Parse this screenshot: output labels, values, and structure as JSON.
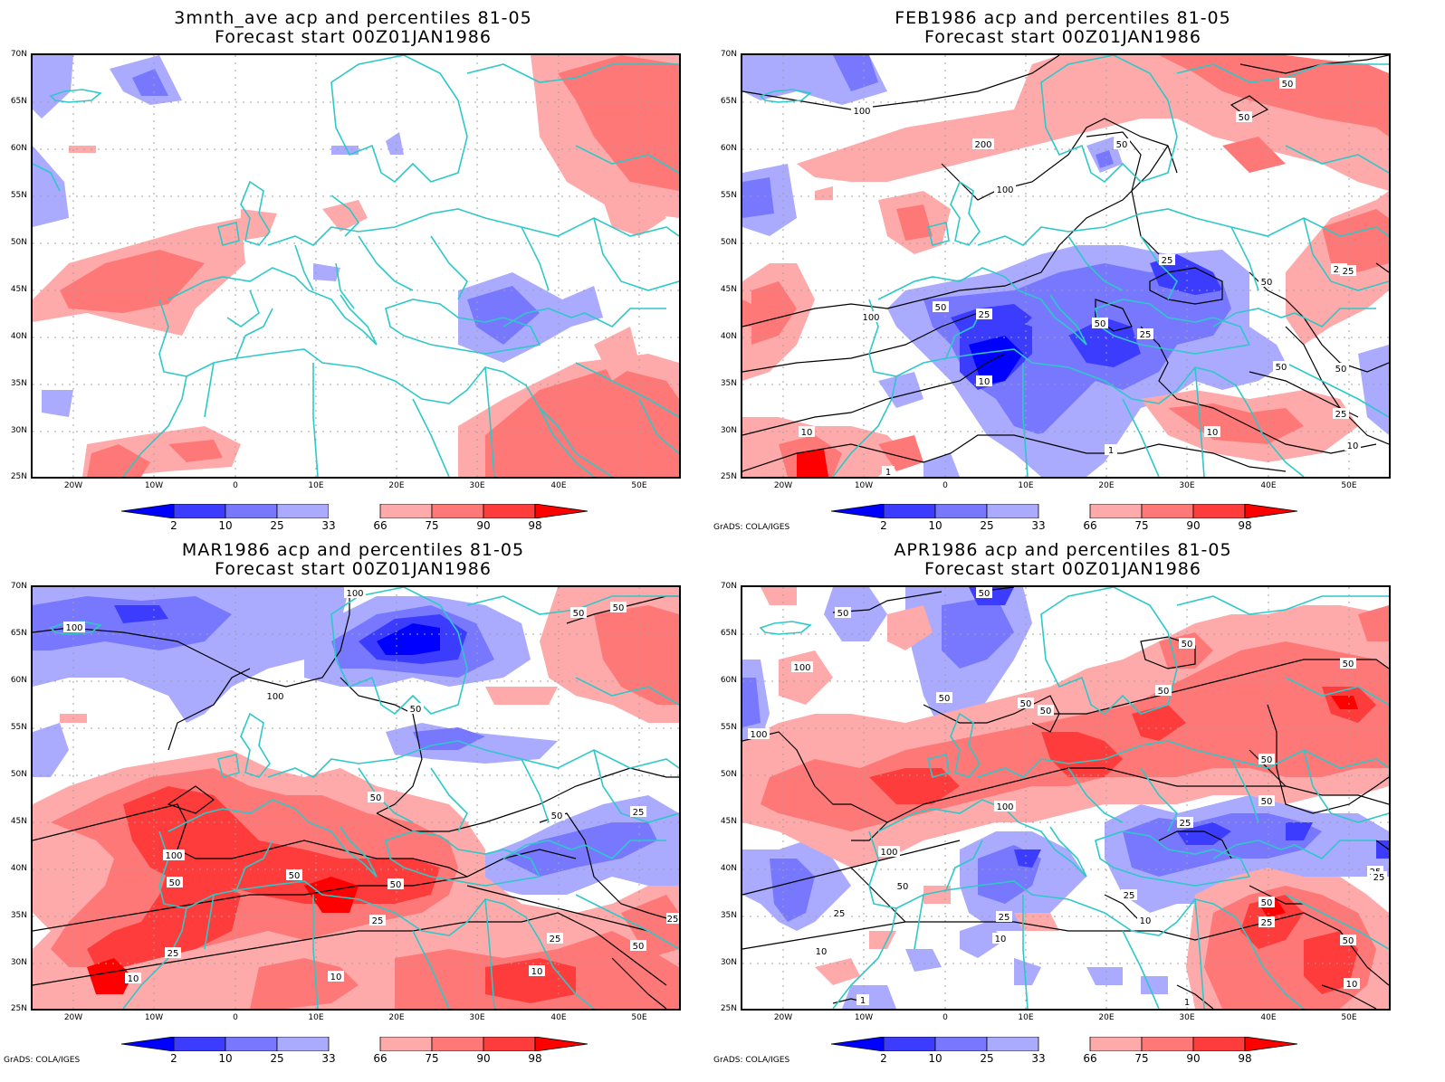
{
  "panels": [
    {
      "id": "ave",
      "title_line1": "3mnth_ave acp and percentiles 81-05",
      "title_line2": "Forecast start 00Z01JAN1986",
      "credit": "",
      "contour_labels": []
    },
    {
      "id": "feb",
      "title_line1": "FEB1986 acp and percentiles 81-05",
      "title_line2": "Forecast start 00Z01JAN1986",
      "credit": "GrADS: COLA/IGES",
      "contour_labels": [
        "100",
        "50",
        "50",
        "200",
        "100",
        "25",
        "50",
        "25",
        "50",
        "100",
        "50",
        "25",
        "10",
        "25",
        "50",
        "50",
        "50",
        "25",
        "10",
        "10",
        "10",
        "1",
        "1",
        "25"
      ]
    },
    {
      "id": "mar",
      "title_line1": "MAR1986 acp and percentiles 81-05",
      "title_line2": "Forecast start 00Z01JAN1986",
      "credit": "GrADS: COLA/IGES",
      "contour_labels": [
        "100",
        "100",
        "50",
        "50",
        "100",
        "50",
        "50",
        "50",
        "25",
        "100",
        "50",
        "50",
        "50",
        "25",
        "25",
        "25",
        "10",
        "10",
        "50",
        "10",
        "25"
      ]
    },
    {
      "id": "apr",
      "title_line1": "APR1986 acp and percentiles 81-05",
      "title_line2": "Forecast start 00Z01JAN1986",
      "credit": "GrADS: COLA/IGES",
      "contour_labels": [
        "50",
        "50",
        "100",
        "50",
        "50",
        "50",
        "50",
        "50",
        "100",
        "50",
        "50",
        "100",
        "50",
        "25",
        "100",
        "50",
        "25",
        "25",
        "25",
        "10",
        "10",
        "25",
        "50",
        "25",
        "10",
        "50",
        "1",
        "1",
        "10",
        "25"
      ]
    }
  ],
  "lat_labels": [
    "70N",
    "65N",
    "60N",
    "55N",
    "50N",
    "45N",
    "40N",
    "35N",
    "30N",
    "25N"
  ],
  "lon_labels": [
    "20W",
    "10W",
    "0",
    "10E",
    "20E",
    "30E",
    "40E",
    "50E"
  ],
  "colorbar": {
    "labels": [
      "2",
      "10",
      "25",
      "33",
      "66",
      "75",
      "90",
      "98"
    ],
    "colors": [
      "#0000ff",
      "#3c3cff",
      "#7878ff",
      "#aaaaff",
      "#ffffff",
      "#ffaaaa",
      "#ff7878",
      "#ff3c3c",
      "#ff0000"
    ]
  },
  "colors": {
    "coastline": "#2ec8c8",
    "contour": "#000000",
    "grid": "#a0a0a0"
  }
}
